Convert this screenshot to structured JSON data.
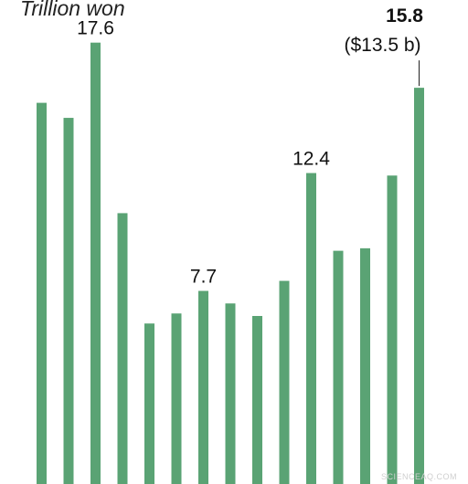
{
  "chart_data": {
    "type": "bar",
    "unit_label": "Trillion won",
    "values": [
      15.2,
      14.6,
      17.6,
      10.8,
      6.4,
      6.8,
      7.7,
      7.2,
      6.7,
      8.1,
      12.4,
      9.3,
      9.4,
      12.3,
      15.8
    ],
    "ylim": [
      0,
      19.3
    ],
    "annotations": [
      {
        "index": 2,
        "text": "17.6",
        "bold": false
      },
      {
        "index": 6,
        "text": "7.7",
        "bold": false
      },
      {
        "index": 10,
        "text": "12.4",
        "bold": false
      },
      {
        "index": 14,
        "text": "15.8",
        "bold": true,
        "subtext": "($13.5 b)"
      }
    ],
    "bar_color": "#5aa374",
    "grid": false
  },
  "watermark": "SCIENCEAQ.COM"
}
